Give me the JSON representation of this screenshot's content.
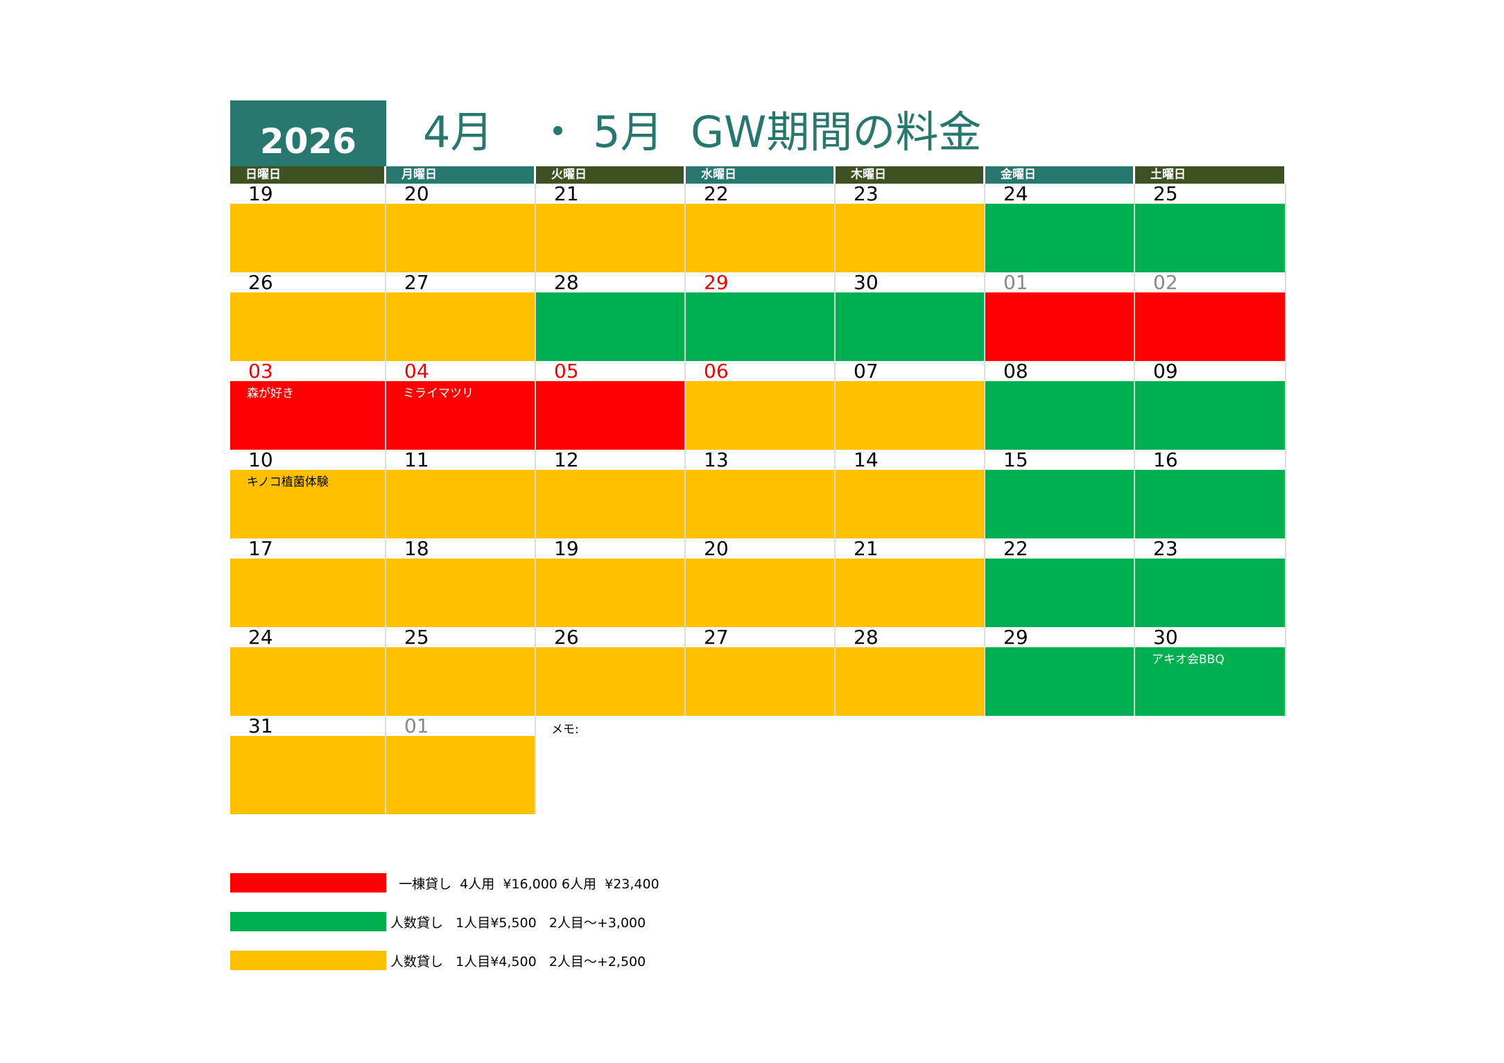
{
  "year": "2026",
  "title": "4月　・ 5月  GW期間の料金",
  "colors": {
    "yellow": "#FFC000",
    "green": "#00B050",
    "red": "#FF0000",
    "olive": "#3E5122",
    "teal": "#28776E"
  },
  "weekdays": [
    "日曜日",
    "月曜日",
    "火曜日",
    "水曜日",
    "木曜日",
    "金曜日",
    "土曜日"
  ],
  "weeks": [
    [
      {
        "d": "19",
        "c": "yellow"
      },
      {
        "d": "20",
        "c": "yellow"
      },
      {
        "d": "21",
        "c": "yellow"
      },
      {
        "d": "22",
        "c": "yellow"
      },
      {
        "d": "23",
        "c": "yellow"
      },
      {
        "d": "24",
        "c": "green"
      },
      {
        "d": "25",
        "c": "green"
      }
    ],
    [
      {
        "d": "26",
        "c": "yellow"
      },
      {
        "d": "27",
        "c": "yellow"
      },
      {
        "d": "28",
        "c": "green"
      },
      {
        "d": "29",
        "c": "green",
        "dc": "red"
      },
      {
        "d": "30",
        "c": "green"
      },
      {
        "d": "01",
        "c": "red",
        "dc": "gray"
      },
      {
        "d": "02",
        "c": "red",
        "dc": "gray"
      }
    ],
    [
      {
        "d": "03",
        "c": "red",
        "dc": "red",
        "note": "森が好き",
        "nc": "#fff"
      },
      {
        "d": "04",
        "c": "red",
        "dc": "red",
        "note": "ミライマツリ",
        "nc": "#fff"
      },
      {
        "d": "05",
        "c": "red",
        "dc": "red"
      },
      {
        "d": "06",
        "c": "yellow",
        "dc": "red"
      },
      {
        "d": "07",
        "c": "yellow"
      },
      {
        "d": "08",
        "c": "green"
      },
      {
        "d": "09",
        "c": "green"
      }
    ],
    [
      {
        "d": "10",
        "c": "yellow",
        "note": "キノコ植菌体験",
        "nc": "#000"
      },
      {
        "d": "11",
        "c": "yellow"
      },
      {
        "d": "12",
        "c": "yellow"
      },
      {
        "d": "13",
        "c": "yellow"
      },
      {
        "d": "14",
        "c": "yellow"
      },
      {
        "d": "15",
        "c": "green"
      },
      {
        "d": "16",
        "c": "green"
      }
    ],
    [
      {
        "d": "17",
        "c": "yellow"
      },
      {
        "d": "18",
        "c": "yellow"
      },
      {
        "d": "19",
        "c": "yellow"
      },
      {
        "d": "20",
        "c": "yellow"
      },
      {
        "d": "21",
        "c": "yellow"
      },
      {
        "d": "22",
        "c": "green"
      },
      {
        "d": "23",
        "c": "green"
      }
    ],
    [
      {
        "d": "24",
        "c": "yellow"
      },
      {
        "d": "25",
        "c": "yellow"
      },
      {
        "d": "26",
        "c": "yellow"
      },
      {
        "d": "27",
        "c": "yellow"
      },
      {
        "d": "28",
        "c": "yellow"
      },
      {
        "d": "29",
        "c": "green"
      },
      {
        "d": "30",
        "c": "green",
        "note": "アキオ会BBQ",
        "nc": "#fff"
      }
    ],
    [
      {
        "d": "31",
        "c": "yellow"
      },
      {
        "d": "01",
        "c": "yellow",
        "dc": "gray"
      }
    ]
  ],
  "memo_label": "メモ:",
  "legend": [
    {
      "color": "red",
      "text": "  一棟貸し  4人用  ¥16,000 6人用  ¥23,400"
    },
    {
      "color": "green",
      "text": "人数貸し   1人目¥5,500   2人目～+3,000"
    },
    {
      "color": "yellow",
      "text": "人数貸し   1人目¥4,500   2人目～+2,500"
    }
  ]
}
